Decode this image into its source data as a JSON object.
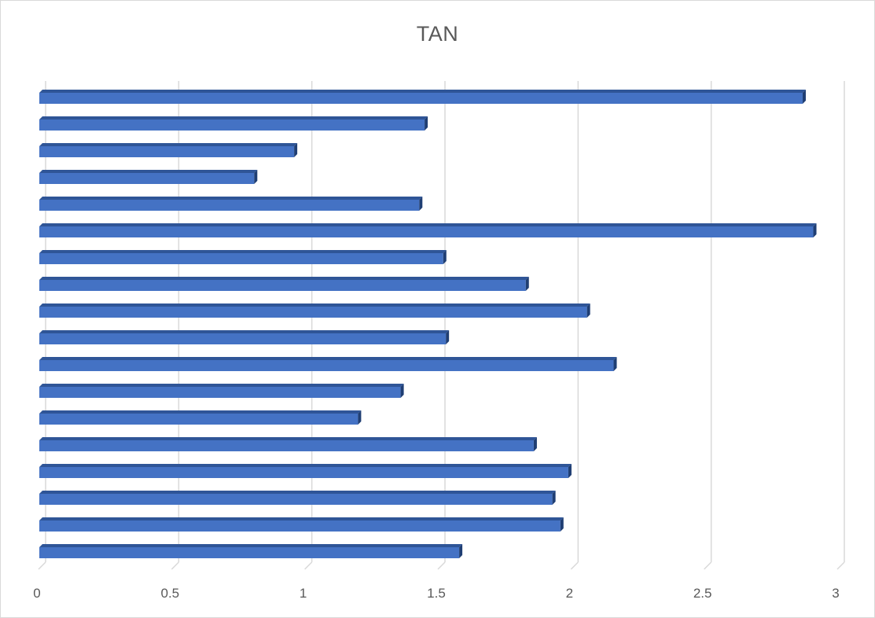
{
  "chart_data": {
    "type": "bar",
    "orientation": "horizontal",
    "title": "TAN",
    "xlabel": "",
    "ylabel": "",
    "xlim": [
      0,
      3
    ],
    "x_ticks": [
      "0",
      "0.5",
      "1",
      "1.5",
      "2",
      "2.5",
      "3"
    ],
    "grid": true,
    "legend": "none",
    "bar_color": "#4472c4",
    "bar_shade_color": "#2f5597",
    "grid_color": "#d9d9d9",
    "values": [
      1.58,
      1.96,
      1.93,
      1.99,
      1.86,
      1.2,
      1.36,
      2.16,
      1.53,
      2.06,
      1.83,
      1.52,
      2.91,
      1.43,
      0.81,
      0.96,
      1.45,
      2.87
    ]
  }
}
